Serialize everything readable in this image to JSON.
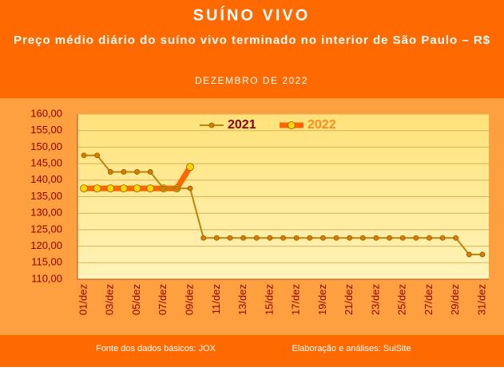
{
  "chart_data": {
    "type": "line",
    "title": "SUÍNO VIVO",
    "subtitle": "Preço médio diário do suíno vivo terminado no interior de São Paulo – R$",
    "period": "DEZEMBRO DE 2022",
    "footer_left": "Fonte dos dados básicos: JOX",
    "footer_right": "Elaboração e análises: SuiSite",
    "categories": [
      "01/dez",
      null,
      "03/dez",
      null,
      "05/dez",
      null,
      "07/dez",
      null,
      "09/dez",
      null,
      "11/dez",
      null,
      "13/dez",
      null,
      "15/dez",
      null,
      "17/dez",
      null,
      "19/dez",
      null,
      "21/dez",
      null,
      "23/dez",
      null,
      "25/dez",
      null,
      "27/dez",
      null,
      "29/dez",
      null,
      "31/dez"
    ],
    "series": [
      {
        "name": "2021",
        "color": "#b8860b",
        "marker_color": "#e07b00",
        "values": [
          147.5,
          147.5,
          142.5,
          142.5,
          142.5,
          142.5,
          137.5,
          137.5,
          137.5,
          122.5,
          122.5,
          122.5,
          122.5,
          122.5,
          122.5,
          122.5,
          122.5,
          122.5,
          122.5,
          122.5,
          122.5,
          122.5,
          122.5,
          122.5,
          122.5,
          122.5,
          122.5,
          122.5,
          122.5,
          117.5,
          117.5
        ]
      },
      {
        "name": "2022",
        "color": "#ff6600",
        "marker_color": "#ffd700",
        "values": [
          137.5,
          137.5,
          137.5,
          137.5,
          137.5,
          137.5,
          137.5,
          137.5,
          144,
          null,
          null,
          null,
          null,
          null,
          null,
          null,
          null,
          null,
          null,
          null,
          null,
          null,
          null,
          null,
          null,
          null,
          null,
          null,
          null,
          null,
          null
        ]
      }
    ],
    "ylim": [
      110,
      160
    ],
    "yticks": [
      {
        "value": 110,
        "label": "110,00"
      },
      {
        "value": 115,
        "label": "115,00"
      },
      {
        "value": 120,
        "label": "120,00"
      },
      {
        "value": 125,
        "label": "125,00"
      },
      {
        "value": 130,
        "label": "130,00"
      },
      {
        "value": 135,
        "label": "135,00"
      },
      {
        "value": 140,
        "label": "140,00"
      },
      {
        "value": 145,
        "label": "145,00"
      },
      {
        "value": 150,
        "label": "150,00"
      },
      {
        "value": 155,
        "label": "155,00"
      },
      {
        "value": 160,
        "label": "160,00"
      }
    ],
    "grid": true
  }
}
